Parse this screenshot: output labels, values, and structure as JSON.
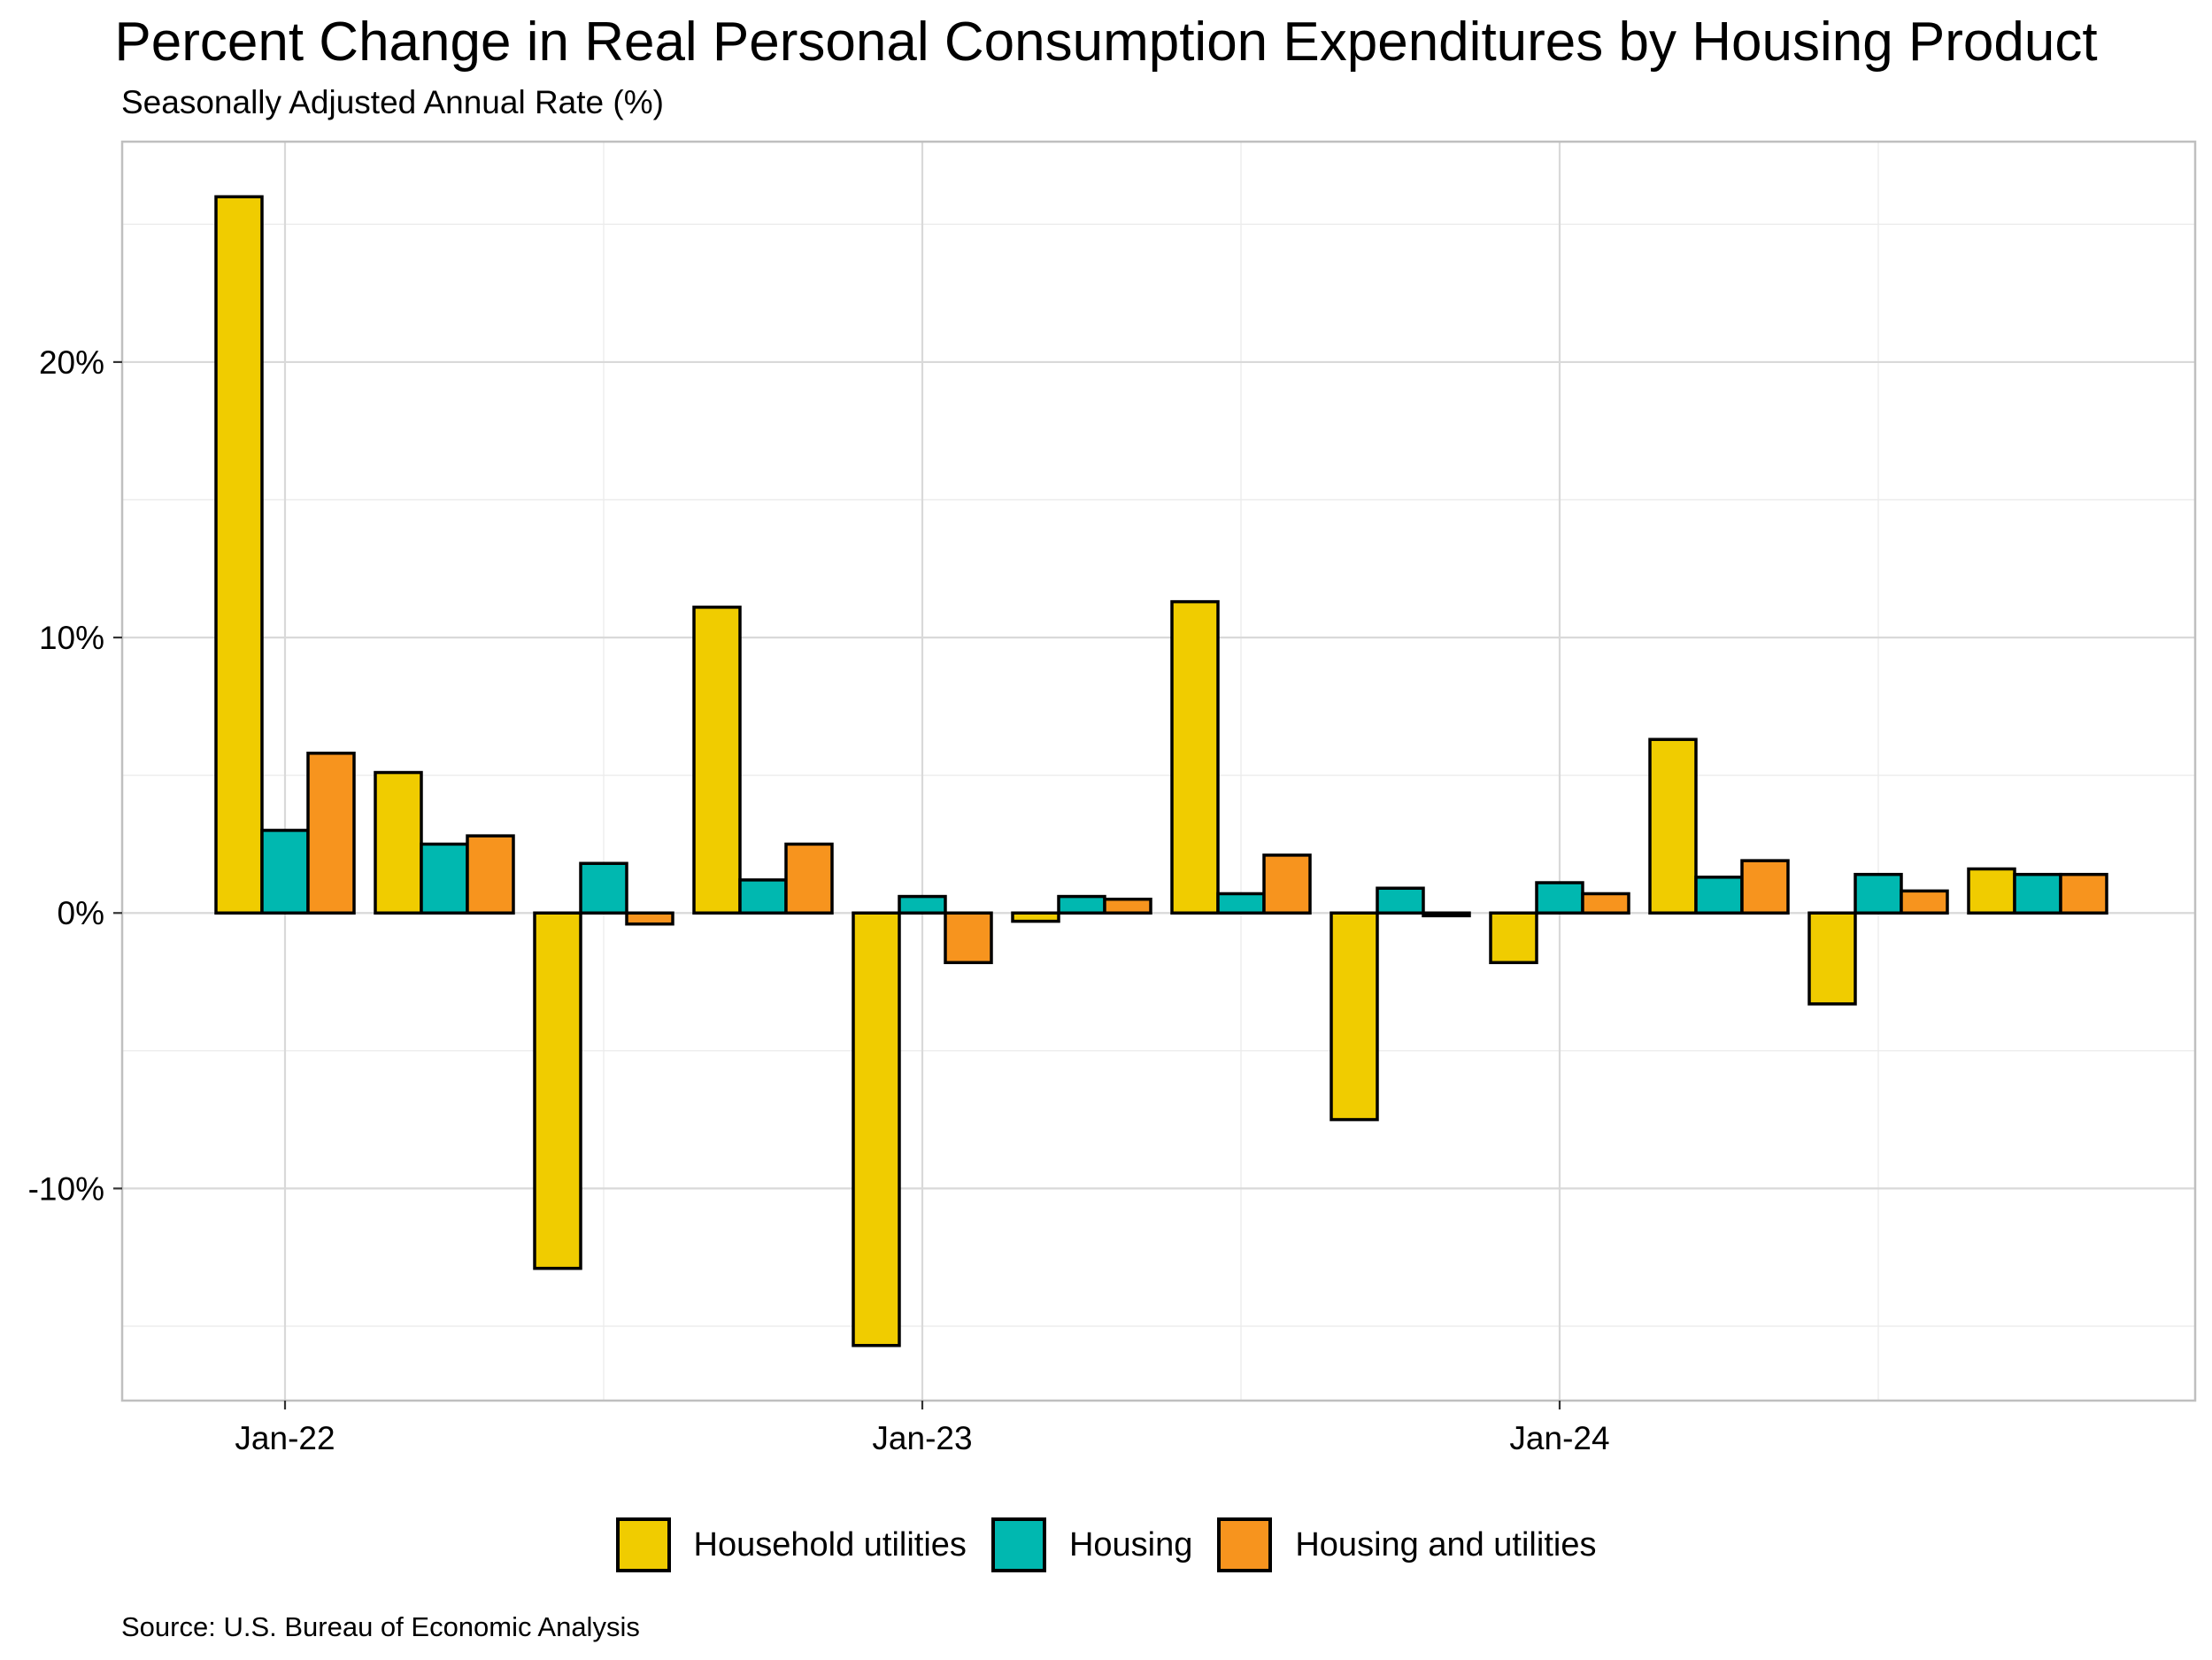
{
  "chart_data": {
    "type": "bar",
    "title": "Percent Change in Real Personal Consumption Expenditures by Housing Product",
    "subtitle": "Seasonally Adjusted Annual Rate (%)",
    "source": "Source: U.S. Bureau of Economic Analysis",
    "xlabel": "",
    "ylabel": "",
    "categories": [
      "2022-Q1",
      "2022-Q2",
      "2022-Q3",
      "2022-Q4",
      "2023-Q1",
      "2023-Q2",
      "2023-Q3",
      "2023-Q4",
      "2024-Q1",
      "2024-Q2",
      "2024-Q3",
      "2024-Q4"
    ],
    "x_tick_labels": [
      {
        "category": "2022-Q1",
        "label": "Jan-22"
      },
      {
        "category": "2023-Q1",
        "label": "Jan-23"
      },
      {
        "category": "2024-Q1",
        "label": "Jan-24"
      }
    ],
    "y_ticks": [
      {
        "value": -10,
        "label": "-10%"
      },
      {
        "value": 0,
        "label": "0%"
      },
      {
        "value": 10,
        "label": "10%"
      },
      {
        "value": 20,
        "label": "20%"
      }
    ],
    "ylim": [
      -17.7,
      28.0
    ],
    "grid": true,
    "legend_position": "bottom",
    "series": [
      {
        "name": "Household utilities",
        "color": "#f0cc00",
        "values": [
          26.0,
          5.1,
          -12.9,
          11.1,
          -15.7,
          -0.3,
          11.3,
          -7.5,
          -1.8,
          6.3,
          -3.3,
          1.6
        ]
      },
      {
        "name": "Housing",
        "color": "#00b8b0",
        "values": [
          3.0,
          2.5,
          1.8,
          1.2,
          0.6,
          0.6,
          0.7,
          0.9,
          1.1,
          1.3,
          1.4,
          1.4
        ]
      },
      {
        "name": "Housing and utilities",
        "color": "#f7941e",
        "values": [
          5.8,
          2.8,
          -0.4,
          2.5,
          -1.8,
          0.5,
          2.1,
          -0.1,
          0.7,
          1.9,
          0.8,
          1.4
        ]
      }
    ]
  }
}
